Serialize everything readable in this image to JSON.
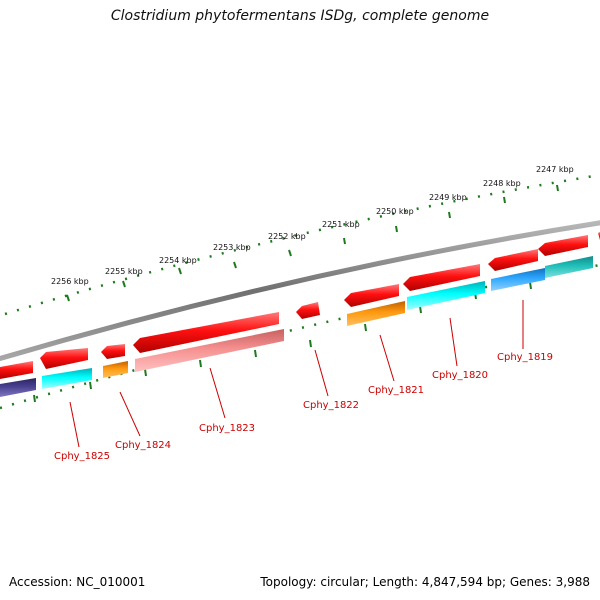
{
  "title": "Clostridium phytofermentans ISDg, complete genome",
  "footer": {
    "accession": "Accession: NC_010001",
    "summary": "Topology: circular; Length: 4,847,594 bp; Genes: 3,988"
  },
  "scale": {
    "labels": [
      "2256 kbp",
      "2255 kbp",
      "2254 kbp",
      "2253 kbp",
      "2252 kbp",
      "2251 kbp",
      "2250 kbp",
      "2249 kbp",
      "2248 kbp",
      "2247 kbp"
    ]
  },
  "gene_labels": [
    "Cphy_1825",
    "Cphy_1824",
    "Cphy_1823",
    "Cphy_1822",
    "Cphy_1821",
    "Cphy_1820",
    "Cphy_1819"
  ],
  "colors": {
    "backbone": "#808080",
    "tick": "#1e7a1e",
    "gene_label": "#cc0000",
    "cds": "#ff0000",
    "rna_pink": "#f08080",
    "cog_cyan": "#00ffff",
    "cog_orange": "#ff8c00",
    "cog_blue": "#1e90ff",
    "cog_navy": "#483d8b",
    "cog_teal": "#20b2aa"
  }
}
